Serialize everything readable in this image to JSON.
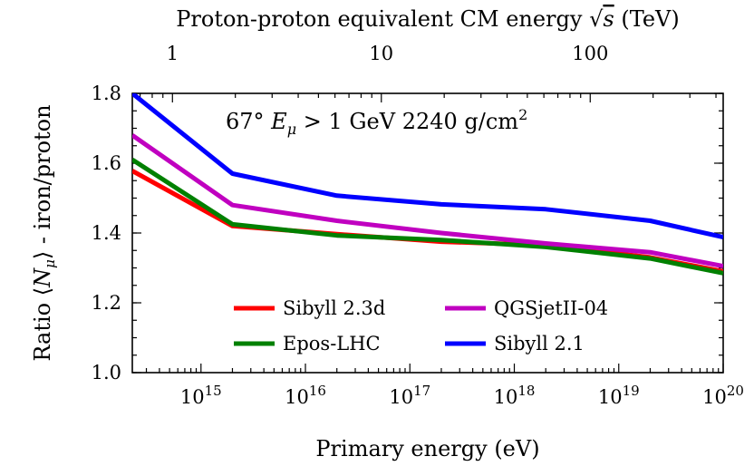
{
  "chart_data": {
    "type": "line",
    "xscale": "log",
    "xlim": [
      220000000000000.0,
      1e+20
    ],
    "ylim": [
      1.0,
      1.8
    ],
    "x": [
      220000000000000.0,
      2000000000000000.0,
      2e+16,
      2e+17,
      2e+18,
      2e+19,
      1e+20
    ],
    "series": [
      {
        "name": "Sibyll 2.3d",
        "color": "#ff0000",
        "values": [
          1.578,
          1.42,
          1.397,
          1.375,
          1.365,
          1.33,
          1.29
        ]
      },
      {
        "name": "Epos-LHC",
        "color": "#008000",
        "values": [
          1.61,
          1.425,
          1.393,
          1.38,
          1.36,
          1.327,
          1.285
        ]
      },
      {
        "name": "QGSjetII-04",
        "color": "#c000c0",
        "values": [
          1.68,
          1.48,
          1.435,
          1.4,
          1.37,
          1.345,
          1.305
        ]
      },
      {
        "name": "Sibyll 2.1",
        "color": "#0000ff",
        "values": [
          1.8,
          1.57,
          1.507,
          1.482,
          1.468,
          1.435,
          1.388
        ]
      }
    ],
    "xlabel": "Primary energy (eV)",
    "ylabel": "Ratio ⟨Nμ⟩ - iron/proton",
    "top_xlabel": "Proton-proton equivalent CM energy √s (TeV)",
    "annotation": "67° Eμ > 1 GeV 2240 g/cm²",
    "yticks": [
      1.0,
      1.2,
      1.4,
      1.6,
      1.8
    ],
    "ytick_labels": [
      "1.0",
      "1.2",
      "1.4",
      "1.6",
      "1.8"
    ],
    "xticks_bottom": [
      1000000000000000.0,
      1e+16,
      1e+17,
      1e+18,
      1e+19,
      1e+20
    ],
    "xtick_bottom_exponents": [
      "15",
      "16",
      "17",
      "18",
      "19",
      "20"
    ],
    "top_axis": {
      "relation": "E_lab = s / (2 m_p)",
      "ticks_tev": [
        1,
        10,
        100
      ],
      "tick_labels": [
        "1",
        "10",
        "100"
      ],
      "range_tev": [
        0.64,
        434
      ]
    },
    "legend": {
      "placement": "bottom-center",
      "columns": 2
    }
  }
}
